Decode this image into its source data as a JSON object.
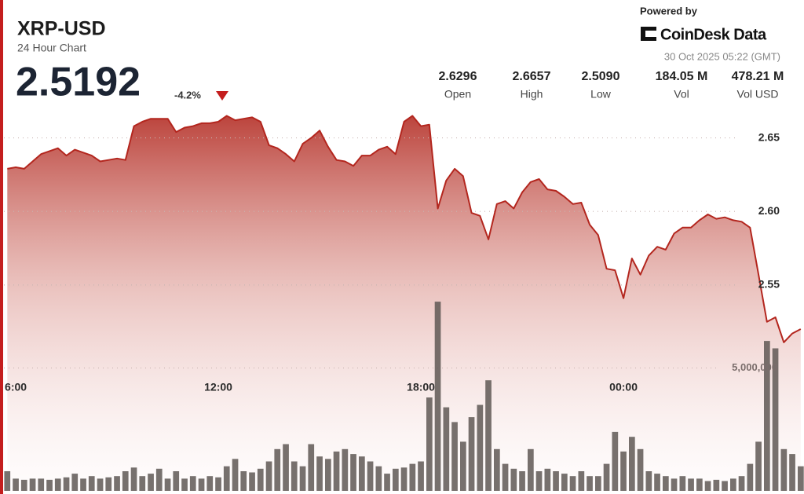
{
  "header": {
    "title": "XRP-USD",
    "subtitle": "24 Hour Chart",
    "price": "2.5192",
    "change": "-4.2%",
    "powered_by": "Powered by",
    "brand": "CoinDesk Data",
    "timestamp": "30 Oct 2025 05:22 (GMT)"
  },
  "stats": [
    {
      "value": "2.6296",
      "label": "Open"
    },
    {
      "value": "2.6657",
      "label": "High"
    },
    {
      "value": "2.5090",
      "label": "Low"
    },
    {
      "value": "184.05 M",
      "label": "Vol"
    },
    {
      "value": "478.21 M",
      "label": "Vol USD"
    }
  ],
  "chart_data": {
    "type": "line",
    "x": [
      5.75,
      6,
      6.25,
      6.5,
      6.75,
      7,
      7.25,
      7.5,
      7.75,
      8,
      8.25,
      8.5,
      8.75,
      9,
      9.25,
      9.5,
      9.75,
      10,
      10.25,
      10.5,
      10.75,
      11,
      11.25,
      11.5,
      11.75,
      12,
      12.25,
      12.5,
      12.75,
      13,
      13.25,
      13.5,
      13.75,
      14,
      14.25,
      14.5,
      14.75,
      15,
      15.25,
      15.5,
      15.75,
      16,
      16.25,
      16.5,
      16.75,
      17,
      17.25,
      17.5,
      17.75,
      18,
      18.25,
      18.5,
      18.75,
      19,
      19.25,
      19.5,
      19.75,
      20,
      20.25,
      20.5,
      20.75,
      21,
      21.25,
      21.5,
      21.75,
      22,
      22.25,
      22.5,
      22.75,
      23,
      23.25,
      23.5,
      23.75,
      24,
      24.25,
      24.5,
      24.75,
      25,
      25.25,
      25.5,
      25.75,
      26,
      26.25,
      26.5,
      26.75,
      27,
      27.25,
      27.5,
      27.75,
      28,
      28.25,
      28.5,
      28.75,
      29,
      29.25
    ],
    "series": [
      {
        "color": "#b3261e",
        "values": [
          2.629,
          2.63,
          2.629,
          2.634,
          2.639,
          2.641,
          2.643,
          2.638,
          2.642,
          2.64,
          2.638,
          2.634,
          2.635,
          2.636,
          2.635,
          2.658,
          2.661,
          2.663,
          2.663,
          2.663,
          2.654,
          2.657,
          2.658,
          2.66,
          2.66,
          2.661,
          2.665,
          2.662,
          2.663,
          2.664,
          2.661,
          2.645,
          2.643,
          2.639,
          2.634,
          2.646,
          2.65,
          2.655,
          2.644,
          2.635,
          2.634,
          2.631,
          2.638,
          2.638,
          2.642,
          2.644,
          2.639,
          2.661,
          2.665,
          2.658,
          2.659,
          2.602,
          2.621,
          2.629,
          2.624,
          2.599,
          2.597,
          2.581,
          2.605,
          2.607,
          2.602,
          2.613,
          2.62,
          2.622,
          2.615,
          2.614,
          2.61,
          2.605,
          2.606,
          2.591,
          2.584,
          2.561,
          2.56,
          2.541,
          2.568,
          2.557,
          2.57,
          2.576,
          2.574,
          2.585,
          2.589,
          2.589,
          2.594,
          2.598,
          2.595,
          2.596,
          2.594,
          2.593,
          2.589,
          2.557,
          2.525,
          2.528,
          2.511,
          2.517,
          2.52
        ]
      },
      {
        "color": "#5f5855",
        "axis": "y2",
        "values": [
          800000,
          500000,
          450000,
          500000,
          500000,
          450000,
          500000,
          550000,
          700000,
          500000,
          600000,
          500000,
          550000,
          600000,
          800000,
          950000,
          600000,
          700000,
          900000,
          500000,
          800000,
          500000,
          600000,
          500000,
          600000,
          550000,
          1000000,
          1300000,
          800000,
          750000,
          900000,
          1200000,
          1700000,
          1900000,
          1200000,
          1000000,
          1900000,
          1400000,
          1300000,
          1600000,
          1700000,
          1500000,
          1400000,
          1200000,
          1000000,
          700000,
          900000,
          950000,
          1100000,
          1200000,
          3800000,
          7700000,
          3400000,
          2800000,
          2000000,
          3000000,
          3500000,
          4500000,
          1700000,
          1100000,
          900000,
          800000,
          1700000,
          800000,
          900000,
          800000,
          700000,
          600000,
          800000,
          600000,
          600000,
          1100000,
          2400000,
          1600000,
          2200000,
          1700000,
          800000,
          700000,
          600000,
          500000,
          600000,
          500000,
          500000,
          400000,
          450000,
          400000,
          500000,
          600000,
          1100000,
          2000000,
          6100000,
          5800000,
          1700000,
          1500000,
          1000000
        ]
      }
    ],
    "xlim": [
      5.65,
      29.3
    ],
    "xticks": [
      {
        "value": 6,
        "label": "6:00"
      },
      {
        "value": 12,
        "label": "12:00"
      },
      {
        "value": 18,
        "label": "18:00"
      },
      {
        "value": 24,
        "label": "00:00"
      }
    ],
    "ylim": [
      2.41,
      2.669
    ],
    "yticks": [
      2.55,
      {
        "value": 2.6,
        "label": "2.60"
      },
      2.65
    ],
    "y2lim": [
      0,
      15500000
    ],
    "y2ticks": [
      {
        "value": 5000000,
        "label": "5,000,000"
      }
    ],
    "grid": true
  }
}
